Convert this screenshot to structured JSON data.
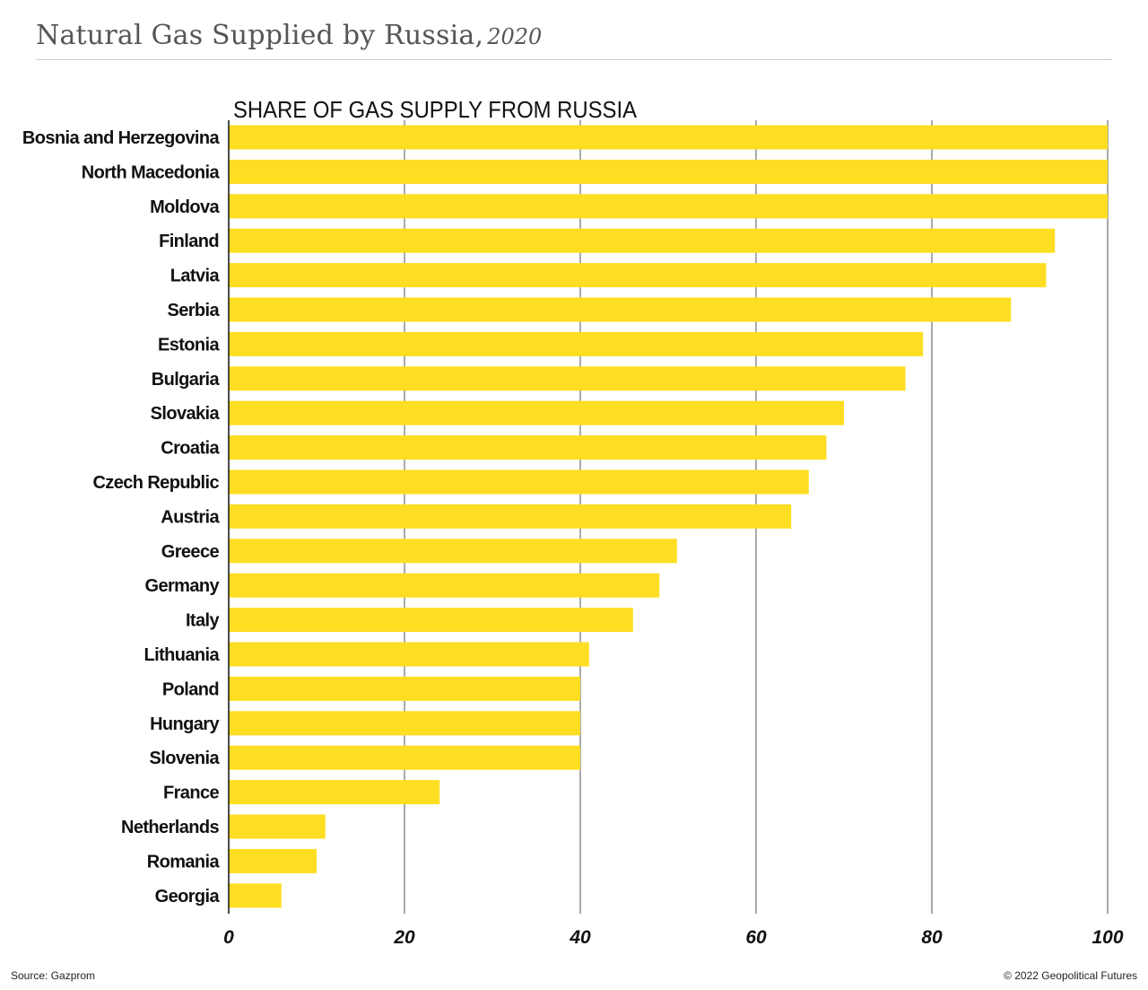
{
  "title": "Natural Gas Supplied by Russia,",
  "title_year": "2020",
  "source": "Source: Gazprom",
  "credit": "© 2022 Geopolitical Futures",
  "colors": {
    "bar": "#FDDE22",
    "grid": "#555555",
    "text": "#111111"
  },
  "chart_data": {
    "type": "bar",
    "orientation": "horizontal",
    "title": "SHARE OF GAS SUPPLY FROM RUSSIA",
    "categories": [
      "Bosnia and Herzegovina",
      "North Macedonia",
      "Moldova",
      "Finland",
      "Latvia",
      "Serbia",
      "Estonia",
      "Bulgaria",
      "Slovakia",
      "Croatia",
      "Czech Republic",
      "Austria",
      "Greece",
      "Germany",
      "Italy",
      "Lithuania",
      "Poland",
      "Hungary",
      "Slovenia",
      "France",
      "Netherlands",
      "Romania",
      "Georgia"
    ],
    "values": [
      100,
      100,
      100,
      94,
      93,
      89,
      79,
      77,
      70,
      68,
      66,
      64,
      51,
      49,
      46,
      41,
      40,
      40,
      40,
      24,
      11,
      10,
      6
    ],
    "xlim": [
      0,
      100
    ],
    "xticks": [
      0,
      20,
      40,
      60,
      80,
      100
    ],
    "grid": true
  }
}
